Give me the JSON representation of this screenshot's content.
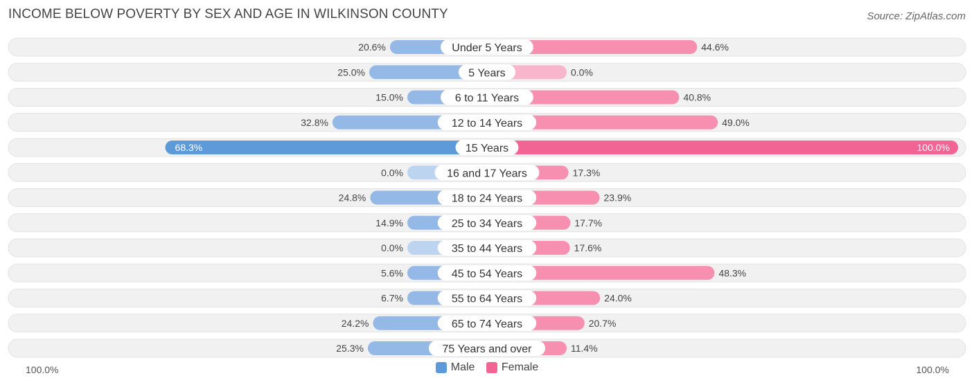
{
  "title": "INCOME BELOW POVERTY BY SEX AND AGE IN WILKINSON COUNTY",
  "source": "Source: ZipAtlas.com",
  "colors": {
    "male": "#94b9e6",
    "male_strong": "#5d9ad9",
    "female": "#f68fb0",
    "female_strong": "#f06593",
    "row_bg": "#f1f1f1"
  },
  "legend": {
    "male": "Male",
    "female": "Female"
  },
  "axis": {
    "left_label": "100.0%",
    "right_label": "100.0%"
  },
  "chart_data": {
    "type": "bar",
    "orientation": "horizontal-diverging",
    "categories": [
      "Under 5 Years",
      "5 Years",
      "6 to 11 Years",
      "12 to 14 Years",
      "15 Years",
      "16 and 17 Years",
      "18 to 24 Years",
      "25 to 34 Years",
      "35 to 44 Years",
      "45 to 54 Years",
      "55 to 64 Years",
      "65 to 74 Years",
      "75 Years and over"
    ],
    "series": [
      {
        "name": "Male",
        "values": [
          20.6,
          25.0,
          15.0,
          32.8,
          68.3,
          0.0,
          24.8,
          14.9,
          0.0,
          5.6,
          6.7,
          24.2,
          25.3
        ],
        "labels": [
          "20.6%",
          "25.0%",
          "15.0%",
          "32.8%",
          "68.3%",
          "0.0%",
          "24.8%",
          "14.9%",
          "0.0%",
          "5.6%",
          "6.7%",
          "24.2%",
          "25.3%"
        ]
      },
      {
        "name": "Female",
        "values": [
          44.6,
          0.0,
          40.8,
          49.0,
          100.0,
          17.3,
          23.9,
          17.7,
          17.6,
          48.3,
          24.0,
          20.7,
          11.4
        ],
        "labels": [
          "44.6%",
          "0.0%",
          "40.8%",
          "49.0%",
          "100.0%",
          "17.3%",
          "23.9%",
          "17.7%",
          "17.6%",
          "48.3%",
          "24.0%",
          "20.7%",
          "11.4%"
        ]
      }
    ],
    "xlim": [
      -100,
      100
    ],
    "grid": false,
    "legend_position": "bottom-center"
  }
}
